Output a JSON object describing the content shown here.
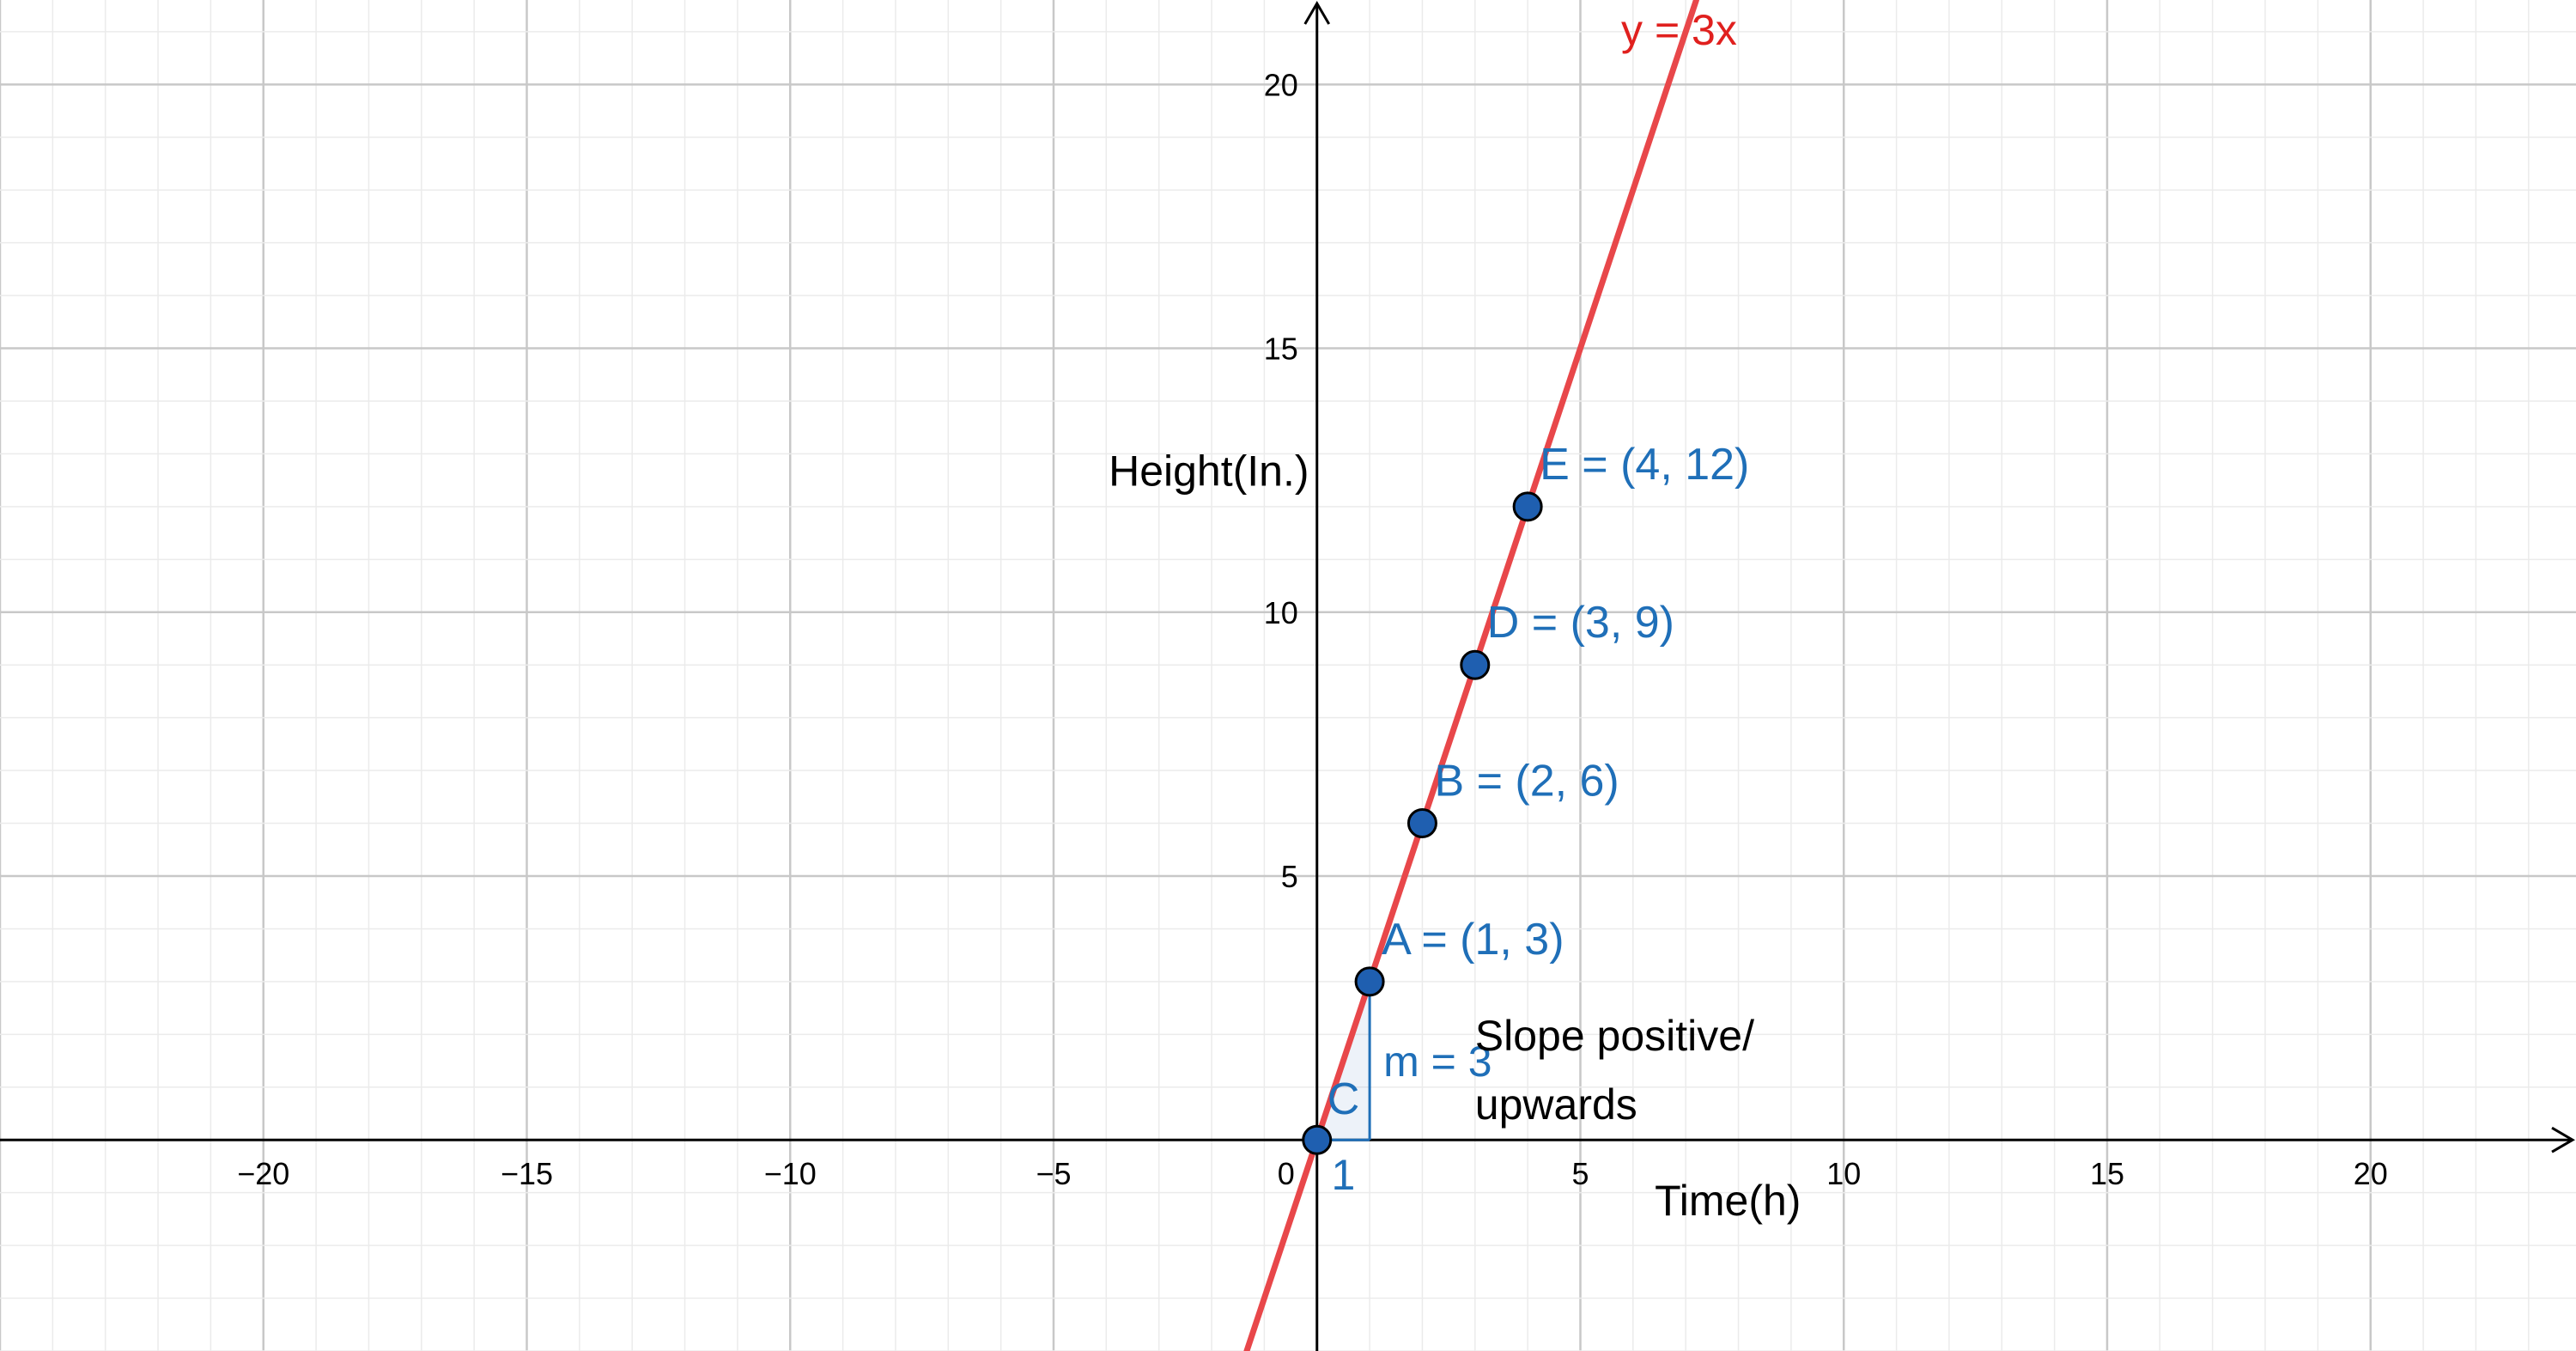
{
  "chart_data": {
    "type": "scatter",
    "xlabel": "Time(h)",
    "ylabel": "Height(In.)",
    "xlim": [
      -25,
      23.9
    ],
    "ylim": [
      -4,
      21.6
    ],
    "x_ticks": [
      -20,
      -15,
      -10,
      -5,
      0,
      5,
      10,
      15,
      20
    ],
    "y_ticks": [
      5,
      10,
      15,
      20
    ],
    "x_tick_labels": [
      "−20",
      "−15",
      "−10",
      "−5",
      "0",
      "5",
      "10",
      "15",
      "20"
    ],
    "y_tick_labels": [
      "5",
      "10",
      "15",
      "20"
    ],
    "grid": true,
    "line": {
      "equation": "y = 3x",
      "slope": 3,
      "intercept": 0,
      "color": "#e8474a"
    },
    "points": [
      {
        "name": "A",
        "label": "A = (1, 3)",
        "x": 1,
        "y": 3
      },
      {
        "name": "B",
        "label": "B = (2, 6)",
        "x": 2,
        "y": 6
      },
      {
        "name": "C",
        "label": "C",
        "x": 0,
        "y": 0
      },
      {
        "name": "D",
        "label": "D = (3, 9)",
        "x": 3,
        "y": 9
      },
      {
        "name": "E",
        "label": "E = (4, 12)",
        "x": 4,
        "y": 12
      }
    ],
    "slope_triangle": {
      "from": [
        0,
        0
      ],
      "to": [
        1,
        3
      ],
      "rise_label": "m = 3",
      "run_label": "1"
    },
    "annotation": [
      "Slope positive/",
      "upwards"
    ],
    "colors": {
      "line": "#e8474a",
      "points": "#1f5fb0",
      "labels": "#1f6fb8"
    }
  }
}
